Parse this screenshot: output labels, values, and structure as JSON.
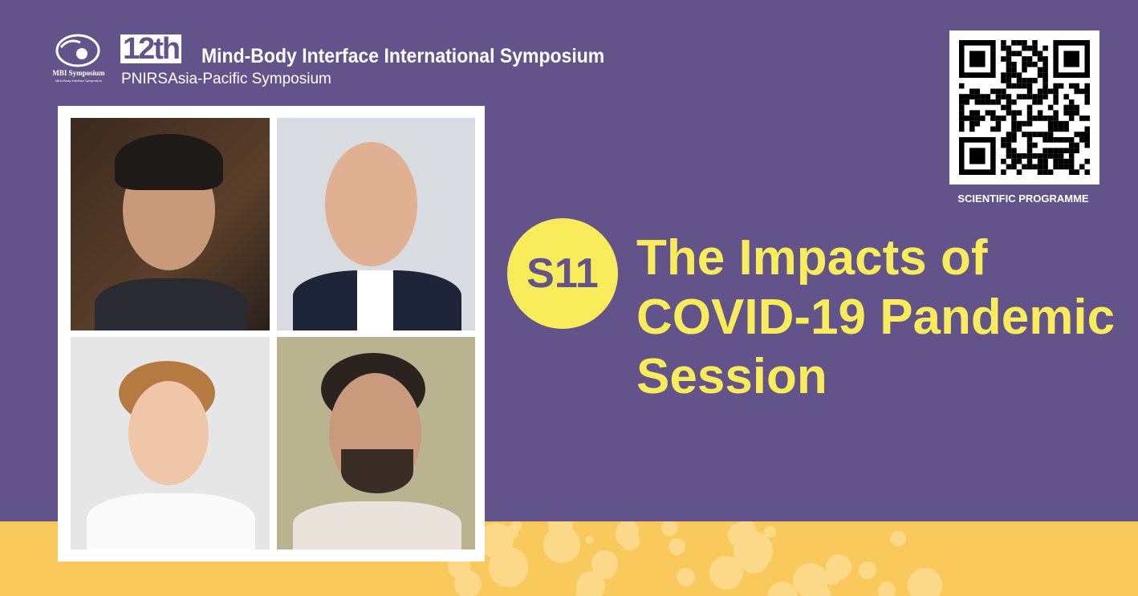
{
  "header": {
    "logo_text": "MBI Symposium",
    "logo_subtext": "Mind-Body Interface Symposium",
    "edition": "12th",
    "title": "Mind-Body Interface International Symposium",
    "subtitle": "PNIRSAsia-Pacific Symposium"
  },
  "qr": {
    "label": "SCIENTIFIC PROGRAMME"
  },
  "session": {
    "code": "S11",
    "title_lines": [
      "The Impacts of",
      "COVID-19 Pandemic",
      "Session"
    ]
  },
  "colors": {
    "background": "#62538a",
    "accent": "#f9ec5a",
    "band": "#f9c95c"
  }
}
